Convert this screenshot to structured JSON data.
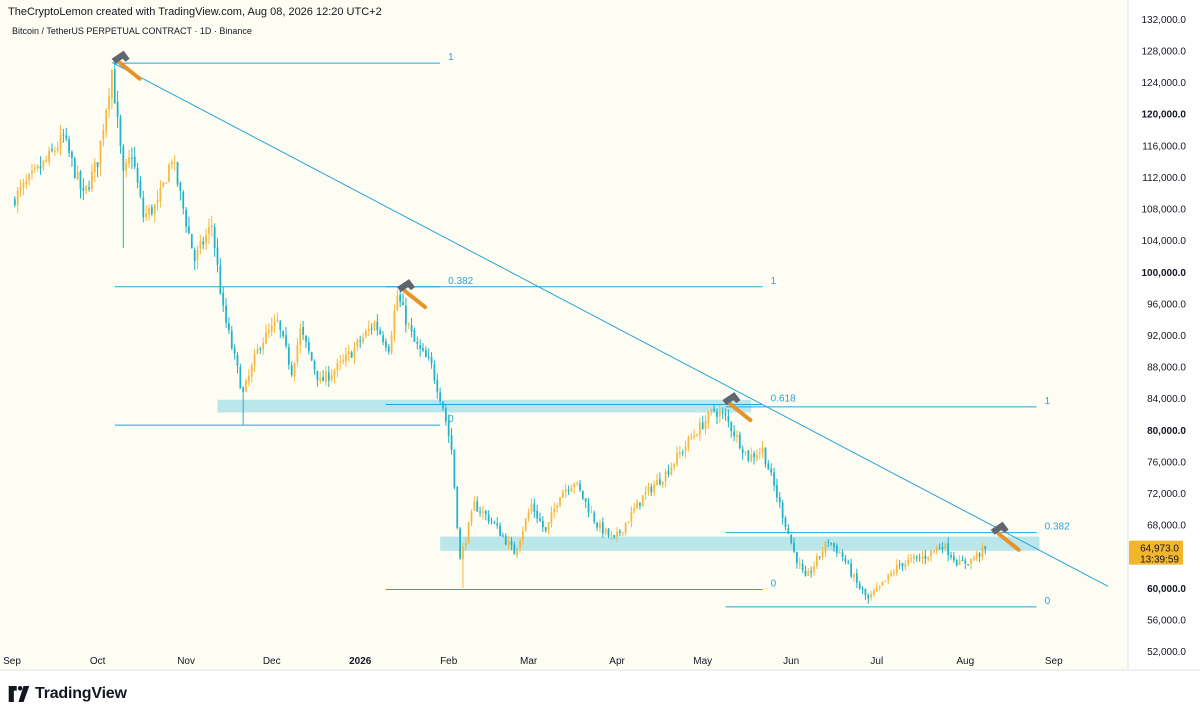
{
  "header": {
    "text": "TheCryptoLemon created with TradingView.com, Aug 08, 2026 12:20 UTC+2"
  },
  "footer": {
    "brand": "TradingView",
    "logo_icon": "tradingview-logo-icon"
  },
  "colors": {
    "bg": "#fefdf3",
    "up": "#f5b841",
    "down": "#21b3c9",
    "line": "#26a4d8",
    "zone": "#9fdde6",
    "price_tag": "#f2b52c"
  },
  "chart_data": {
    "type": "candlestick",
    "title": "Bitcoin / TetherUS PERPETUAL CONTRACT · 1D · Binance",
    "y_ticks": [
      52000,
      56000,
      60000,
      64000,
      68000,
      72000,
      76000,
      80000,
      84000,
      88000,
      92000,
      96000,
      100000,
      104000,
      108000,
      112000,
      116000,
      120000,
      124000,
      128000,
      132000
    ],
    "y_tick_labels": [
      "52,000.0",
      "56,000.0",
      "60,000.0",
      "",
      "68,000.0",
      "72,000.0",
      "76,000.0",
      "80,000.0",
      "84,000.0",
      "88,000.0",
      "92,000.0",
      "96,000.0",
      "100,000.0",
      "104,000.0",
      "108,000.0",
      "112,000.0",
      "116,000.0",
      "120,000.0",
      "124,000.0",
      "128,000.0",
      "132,000.0"
    ],
    "y_bold": [
      60000,
      80000,
      100000,
      120000
    ],
    "ylim": [
      50500,
      133500
    ],
    "x_range": [
      "2025-09-01",
      "2026-09-20"
    ],
    "x_ticks": [
      {
        "date": "2025-09-01",
        "label": "Sep"
      },
      {
        "date": "2025-10-01",
        "label": "Oct"
      },
      {
        "date": "2025-11-01",
        "label": "Nov"
      },
      {
        "date": "2025-12-01",
        "label": "Dec"
      },
      {
        "date": "2026-01-01",
        "label": "2026",
        "bold": true
      },
      {
        "date": "2026-02-01",
        "label": "Feb"
      },
      {
        "date": "2026-03-01",
        "label": "Mar"
      },
      {
        "date": "2026-04-01",
        "label": "Apr"
      },
      {
        "date": "2026-05-01",
        "label": "May"
      },
      {
        "date": "2026-06-01",
        "label": "Jun"
      },
      {
        "date": "2026-07-01",
        "label": "Jul"
      },
      {
        "date": "2026-08-01",
        "label": "Aug"
      },
      {
        "date": "2026-09-01",
        "label": "Sep"
      }
    ],
    "price_keypoints": [
      [
        "2025-09-01",
        109000
      ],
      [
        "2025-09-07",
        111500
      ],
      [
        "2025-09-13",
        114000
      ],
      [
        "2025-09-19",
        117000
      ],
      [
        "2025-09-26",
        109500
      ],
      [
        "2025-10-01",
        114000
      ],
      [
        "2025-10-06",
        125500
      ],
      [
        "2025-10-10",
        112000
      ],
      [
        "2025-10-13",
        115000
      ],
      [
        "2025-10-17",
        107000
      ],
      [
        "2025-10-22",
        108500
      ],
      [
        "2025-10-27",
        114500
      ],
      [
        "2025-11-04",
        101500
      ],
      [
        "2025-11-10",
        106000
      ],
      [
        "2025-11-14",
        95000
      ],
      [
        "2025-11-21",
        84500
      ],
      [
        "2025-11-27",
        91000
      ],
      [
        "2025-12-03",
        93500
      ],
      [
        "2025-12-08",
        87500
      ],
      [
        "2025-12-11",
        92500
      ],
      [
        "2025-12-18",
        86000
      ],
      [
        "2025-12-26",
        88500
      ],
      [
        "2026-01-06",
        93500
      ],
      [
        "2026-01-11",
        90500
      ],
      [
        "2026-01-14",
        97000
      ],
      [
        "2026-01-20",
        91000
      ],
      [
        "2026-01-26",
        88000
      ],
      [
        "2026-01-30",
        83000
      ],
      [
        "2026-02-02",
        77500
      ],
      [
        "2026-02-05",
        63500
      ],
      [
        "2026-02-10",
        70500
      ],
      [
        "2026-02-16",
        68500
      ],
      [
        "2026-02-24",
        64500
      ],
      [
        "2026-03-02",
        70500
      ],
      [
        "2026-03-07",
        67000
      ],
      [
        "2026-03-12",
        72000
      ],
      [
        "2026-03-17",
        73500
      ],
      [
        "2026-03-25",
        68000
      ],
      [
        "2026-03-31",
        66000
      ],
      [
        "2026-04-10",
        71500
      ],
      [
        "2026-04-18",
        74500
      ],
      [
        "2026-04-27",
        79000
      ],
      [
        "2026-05-05",
        82500
      ],
      [
        "2026-05-09",
        81500
      ],
      [
        "2026-05-17",
        76500
      ],
      [
        "2026-05-22",
        77500
      ],
      [
        "2026-05-28",
        70500
      ],
      [
        "2026-06-02",
        64500
      ],
      [
        "2026-06-06",
        61000
      ],
      [
        "2026-06-14",
        66000
      ],
      [
        "2026-06-19",
        64000
      ],
      [
        "2026-06-24",
        60500
      ],
      [
        "2026-06-28",
        58500
      ],
      [
        "2026-07-02",
        60000
      ],
      [
        "2026-07-09",
        63000
      ],
      [
        "2026-07-18",
        64000
      ],
      [
        "2026-07-24",
        65500
      ],
      [
        "2026-07-30",
        63000
      ],
      [
        "2026-08-03",
        63500
      ],
      [
        "2026-08-08",
        64973
      ]
    ],
    "wick_extremes": [
      {
        "date": "2025-10-10",
        "low": 103000
      },
      {
        "date": "2025-11-21",
        "low": 80600
      },
      {
        "date": "2026-02-06",
        "low": 60000
      },
      {
        "date": "2026-06-28",
        "low": 58000
      }
    ],
    "current_price": {
      "value": 64973,
      "label": "64,973.0",
      "countdown": "13:39:59"
    },
    "trendline": {
      "from": [
        "2025-10-06",
        126500
      ],
      "to": [
        "2026-09-20",
        60200
      ]
    },
    "fib_sets": [
      {
        "start": "2025-10-07",
        "end": "2026-01-29",
        "levels": [
          {
            "price": 126400,
            "label": "1",
            "end": "2026-01-29"
          },
          {
            "price": 98100,
            "label": "0.382",
            "end": "2026-01-29"
          },
          {
            "price": 80600,
            "label": "0",
            "end": "2026-01-29"
          }
        ]
      },
      {
        "start": "2026-01-10",
        "end": "2026-05-22",
        "levels": [
          {
            "price": 98100,
            "label": "1",
            "end": "2026-05-22"
          },
          {
            "price": 83200,
            "label": "0.618",
            "end": "2026-05-22"
          },
          {
            "price": 59800,
            "label": "0",
            "end": "2026-05-22"
          }
        ]
      },
      {
        "start": "2026-05-09",
        "end": "2026-08-26",
        "levels": [
          {
            "price": 82900,
            "label": "1",
            "end": "2026-08-26"
          },
          {
            "price": 67000,
            "label": "0.382",
            "end": "2026-08-26"
          },
          {
            "price": 57600,
            "label": "0",
            "end": "2026-08-26"
          }
        ]
      }
    ],
    "zones": [
      {
        "start": "2025-11-12",
        "end": "2026-05-18",
        "low": 82200,
        "high": 83800
      },
      {
        "start": "2026-01-29",
        "end": "2026-08-27",
        "low": 64700,
        "high": 66500
      }
    ],
    "markers": [
      {
        "date": "2025-10-08",
        "price": 126200,
        "icon": "hammer-icon"
      },
      {
        "date": "2026-01-16",
        "price": 97300,
        "icon": "hammer-icon"
      },
      {
        "date": "2026-05-10",
        "price": 83000,
        "icon": "hammer-icon"
      },
      {
        "date": "2026-08-12",
        "price": 66600,
        "icon": "hammer-icon"
      }
    ]
  }
}
